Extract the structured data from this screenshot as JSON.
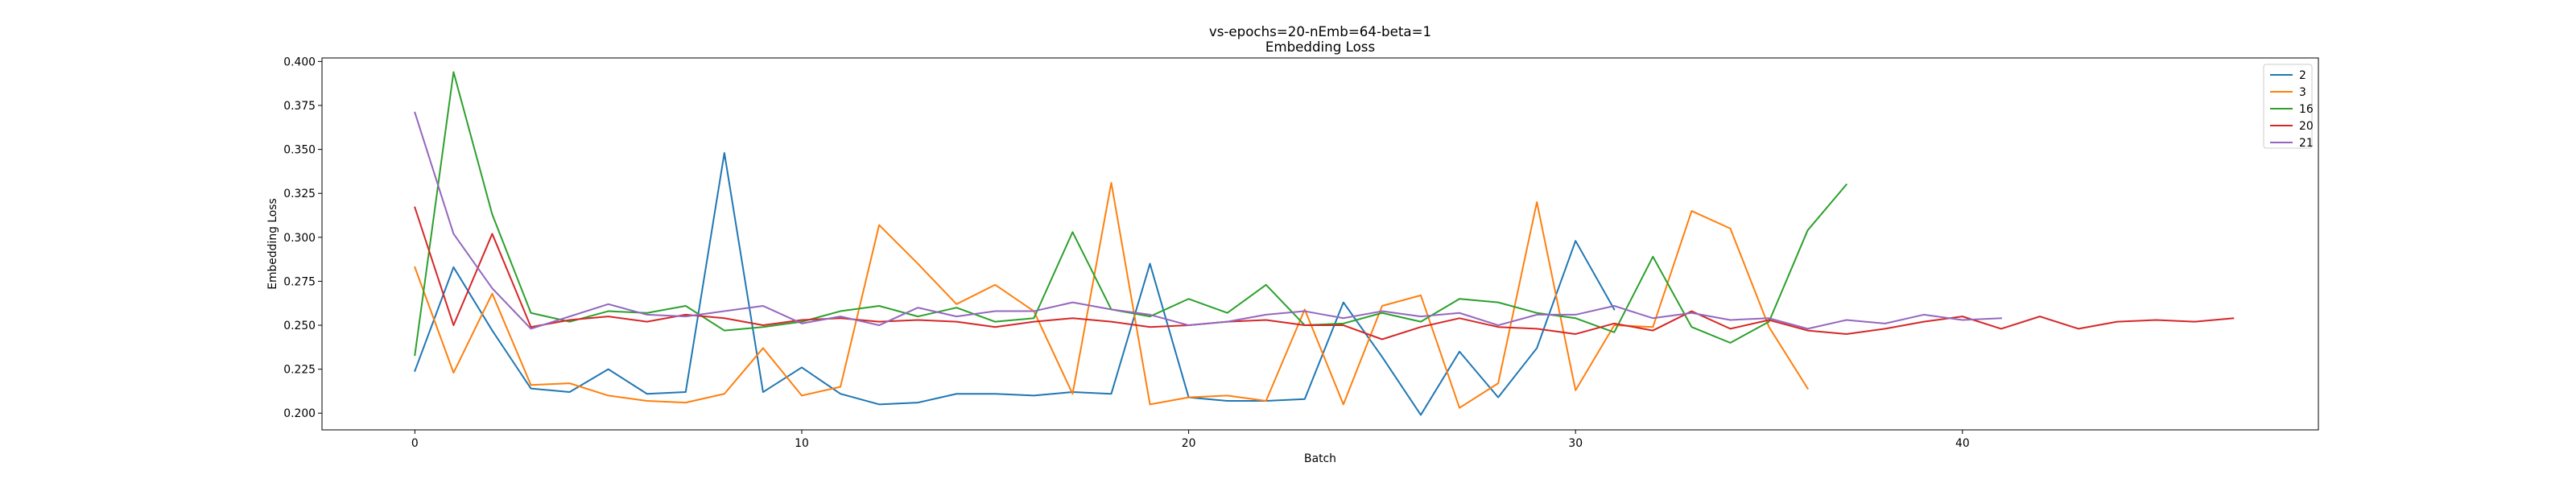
{
  "chart_data": {
    "type": "line",
    "title": "vs-epochs=20-nEmb=64-beta=1",
    "subtitle": "Embedding Loss",
    "xlabel": "Batch",
    "ylabel": "Embedding Loss",
    "xlim": [
      -2.4,
      49.2
    ],
    "ylim": [
      0.1905,
      0.402
    ],
    "xticks": [
      0,
      10,
      20,
      30,
      40
    ],
    "yticks": [
      0.2,
      0.225,
      0.25,
      0.275,
      0.3,
      0.325,
      0.35,
      0.375,
      0.4
    ],
    "ytick_labels": [
      "0.200",
      "0.225",
      "0.250",
      "0.275",
      "0.300",
      "0.325",
      "0.350",
      "0.375",
      "0.400"
    ],
    "grid": false,
    "legend_position": "top-right",
    "series": [
      {
        "name": "2",
        "color": "#1f77b4",
        "x": [
          0,
          1,
          2,
          3,
          4,
          5,
          6,
          7,
          8,
          9,
          10,
          11,
          12,
          13,
          14,
          15,
          16,
          17,
          18,
          19,
          20,
          21,
          22,
          23,
          24,
          25,
          26,
          27,
          28,
          29,
          30,
          31
        ],
        "values": [
          0.224,
          0.283,
          0.247,
          0.214,
          0.212,
          0.225,
          0.211,
          0.212,
          0.348,
          0.212,
          0.226,
          0.211,
          0.205,
          0.206,
          0.211,
          0.211,
          0.21,
          0.212,
          0.211,
          0.285,
          0.209,
          0.207,
          0.207,
          0.208,
          0.263,
          0.232,
          0.199,
          0.235,
          0.209,
          0.237,
          0.298,
          0.259
        ]
      },
      {
        "name": "3",
        "color": "#ff7f0e",
        "x": [
          0,
          1,
          2,
          3,
          4,
          5,
          6,
          7,
          8,
          9,
          10,
          11,
          12,
          13,
          14,
          15,
          16,
          17,
          18,
          19,
          20,
          21,
          22,
          23,
          24,
          25,
          26,
          27,
          28,
          29,
          30,
          31,
          32,
          33,
          34,
          35,
          36
        ],
        "values": [
          0.283,
          0.223,
          0.268,
          0.216,
          0.217,
          0.21,
          0.207,
          0.206,
          0.211,
          0.237,
          0.21,
          0.215,
          0.307,
          0.285,
          0.262,
          0.273,
          0.258,
          0.211,
          0.331,
          0.205,
          0.209,
          0.21,
          0.207,
          0.259,
          0.205,
          0.261,
          0.267,
          0.203,
          0.217,
          0.32,
          0.213,
          0.25,
          0.249,
          0.315,
          0.305,
          0.249,
          0.214
        ]
      },
      {
        "name": "16",
        "color": "#2ca02c",
        "x": [
          0,
          1,
          2,
          3,
          4,
          5,
          6,
          7,
          8,
          9,
          10,
          11,
          12,
          13,
          14,
          15,
          16,
          17,
          18,
          19,
          20,
          21,
          22,
          23,
          24,
          25,
          26,
          27,
          28,
          29,
          30,
          31,
          32,
          33,
          34,
          35,
          36,
          37
        ],
        "values": [
          0.233,
          0.394,
          0.313,
          0.257,
          0.252,
          0.258,
          0.257,
          0.261,
          0.247,
          0.249,
          0.252,
          0.258,
          0.261,
          0.255,
          0.26,
          0.252,
          0.254,
          0.303,
          0.259,
          0.255,
          0.265,
          0.257,
          0.273,
          0.25,
          0.251,
          0.257,
          0.252,
          0.265,
          0.263,
          0.257,
          0.254,
          0.246,
          0.289,
          0.249,
          0.24,
          0.252,
          0.304,
          0.33
        ]
      },
      {
        "name": "20",
        "color": "#d62728",
        "x": [
          0,
          1,
          2,
          3,
          4,
          5,
          6,
          7,
          8,
          9,
          10,
          11,
          12,
          13,
          14,
          15,
          16,
          17,
          18,
          19,
          20,
          21,
          22,
          23,
          24,
          25,
          26,
          27,
          28,
          29,
          30,
          31,
          32,
          33,
          34,
          35,
          36,
          37,
          38,
          39,
          40,
          41,
          42,
          43,
          44,
          45,
          46,
          47
        ],
        "values": [
          0.317,
          0.25,
          0.302,
          0.249,
          0.253,
          0.255,
          0.252,
          0.256,
          0.254,
          0.25,
          0.253,
          0.254,
          0.252,
          0.253,
          0.252,
          0.249,
          0.252,
          0.254,
          0.252,
          0.249,
          0.25,
          0.252,
          0.253,
          0.25,
          0.25,
          0.242,
          0.249,
          0.254,
          0.249,
          0.248,
          0.245,
          0.251,
          0.247,
          0.258,
          0.248,
          0.253,
          0.247,
          0.245,
          0.248,
          0.252,
          0.255,
          0.248,
          0.255,
          0.248,
          0.252,
          0.253,
          0.252,
          0.254
        ]
      },
      {
        "name": "21",
        "color": "#9467bd",
        "x": [
          0,
          1,
          2,
          3,
          4,
          5,
          6,
          7,
          8,
          9,
          10,
          11,
          12,
          13,
          14,
          15,
          16,
          17,
          18,
          19,
          20,
          21,
          22,
          23,
          24,
          25,
          26,
          27,
          28,
          29,
          30,
          31,
          32,
          33,
          34,
          35,
          36,
          37,
          38,
          39,
          40,
          41
        ],
        "values": [
          0.371,
          0.302,
          0.271,
          0.248,
          0.255,
          0.262,
          0.256,
          0.255,
          0.258,
          0.261,
          0.251,
          0.255,
          0.25,
          0.26,
          0.255,
          0.258,
          0.258,
          0.263,
          0.259,
          0.256,
          0.25,
          0.252,
          0.256,
          0.258,
          0.254,
          0.258,
          0.255,
          0.257,
          0.25,
          0.256,
          0.256,
          0.261,
          0.254,
          0.257,
          0.253,
          0.254,
          0.248,
          0.253,
          0.251,
          0.256,
          0.253,
          0.254
        ]
      }
    ]
  }
}
